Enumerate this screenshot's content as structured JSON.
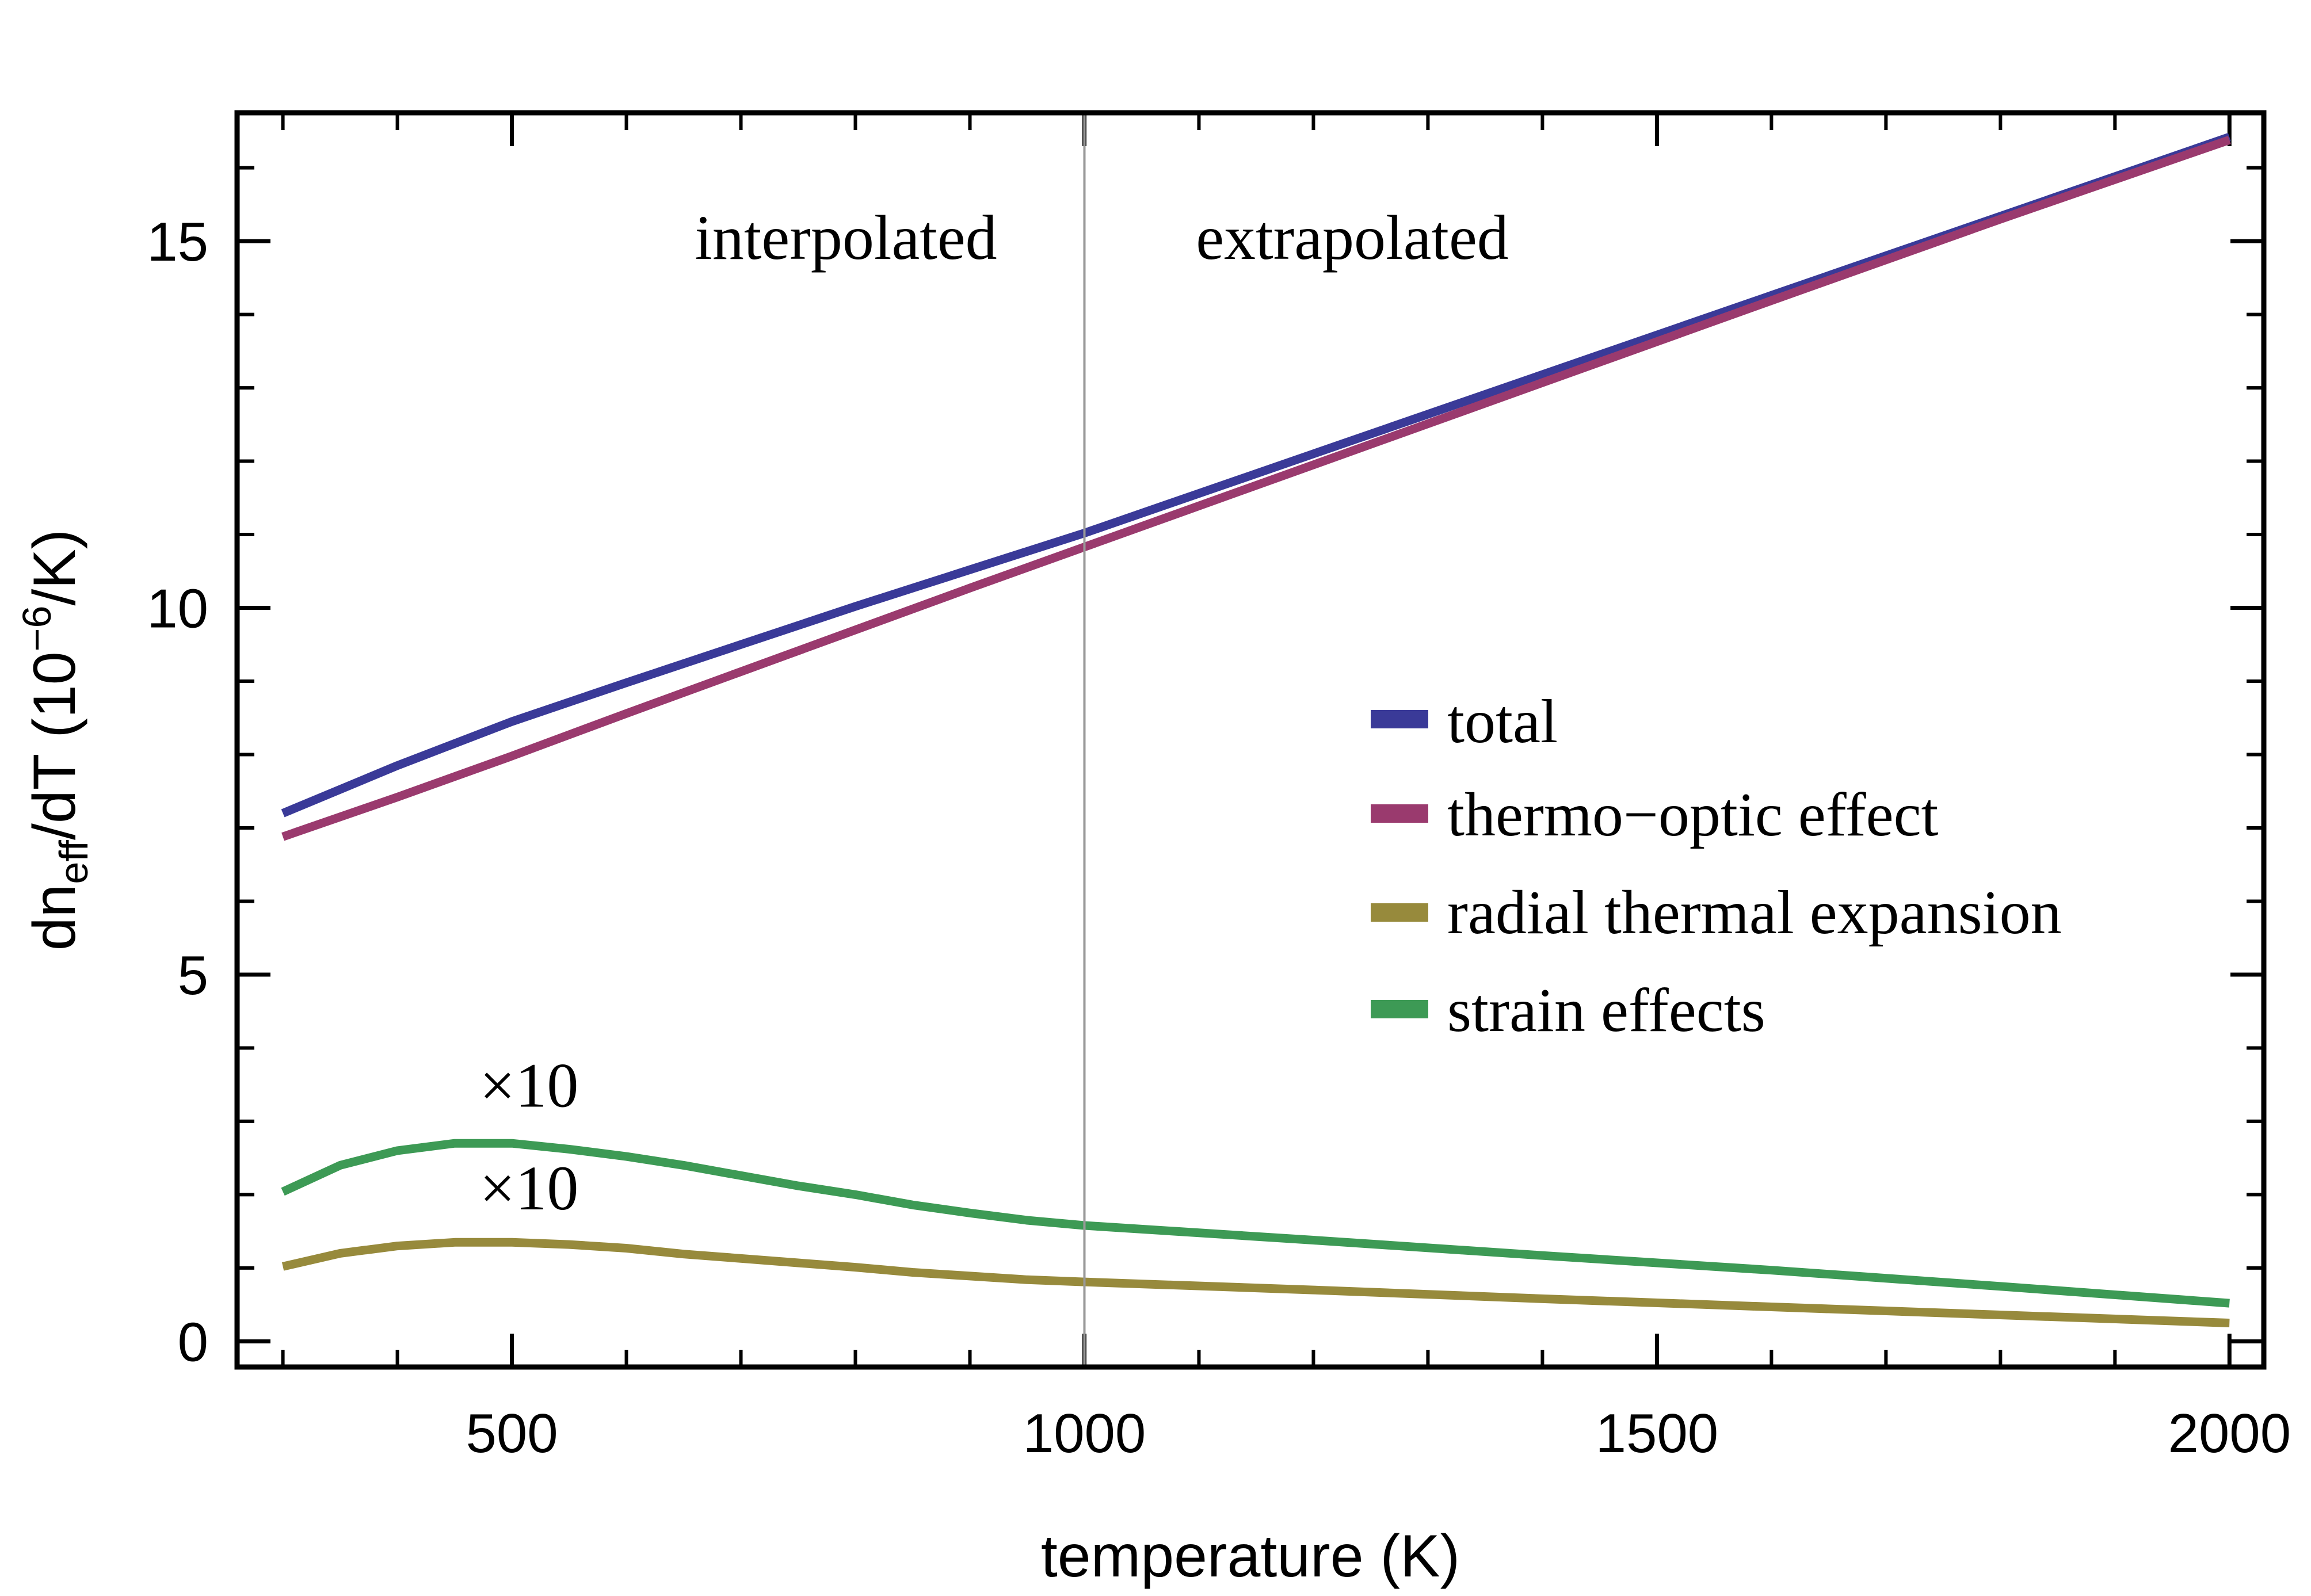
{
  "chart_data": {
    "type": "line",
    "xlabel": "temperature (K)",
    "ylabel": {
      "prefix": "dn",
      "subscript": "eff",
      "middle": "/dT (10",
      "superscript": "−6",
      "suffix": "/K)"
    },
    "xlim": [
      260,
      2030
    ],
    "ylim": [
      -0.35,
      16.75
    ],
    "x_ticks": [
      500,
      1000,
      1500,
      2000
    ],
    "x_tick_labels": [
      "500",
      "1000",
      "1500",
      "2000"
    ],
    "y_ticks": [
      0,
      5,
      10,
      15
    ],
    "y_tick_labels": [
      "0",
      "5",
      "10",
      "15"
    ],
    "x_minor_step": 100,
    "y_minor_step": 1,
    "divider": {
      "x": 1000,
      "left_label": "interpolated",
      "right_label": "extrapolated"
    },
    "grid": false,
    "legend_position": "center-right",
    "series": [
      {
        "name": "total",
        "color": "#3a3a98",
        "x": [
          300,
          400,
          500,
          600,
          700,
          800,
          900,
          1000,
          1200,
          1400,
          1600,
          1800,
          2000
        ],
        "y": [
          7.2,
          7.85,
          8.45,
          8.98,
          9.5,
          10.02,
          10.52,
          11.02,
          12.1,
          13.18,
          14.26,
          15.34,
          16.42
        ]
      },
      {
        "name": "thermo−optic effect",
        "color": "#9a3a6e",
        "x": [
          300,
          400,
          500,
          600,
          700,
          800,
          900,
          1000,
          1200,
          1400,
          1600,
          1800,
          2000
        ],
        "y": [
          6.88,
          7.42,
          7.98,
          8.56,
          9.13,
          9.7,
          10.27,
          10.83,
          11.95,
          13.07,
          14.19,
          15.3,
          16.38
        ]
      },
      {
        "name": "radial thermal expansion",
        "color": "#978a3c",
        "x": [
          300,
          350,
          400,
          450,
          500,
          550,
          600,
          650,
          700,
          750,
          800,
          850,
          900,
          950,
          1000,
          1200,
          1400,
          1600,
          1800,
          2000
        ],
        "y": [
          1.02,
          1.2,
          1.3,
          1.35,
          1.35,
          1.32,
          1.27,
          1.19,
          1.13,
          1.07,
          1.01,
          0.94,
          0.89,
          0.84,
          0.81,
          0.7,
          0.58,
          0.47,
          0.36,
          0.25
        ]
      },
      {
        "name": "strain effects",
        "color": "#3d9a55",
        "x": [
          300,
          350,
          400,
          450,
          500,
          550,
          600,
          650,
          700,
          750,
          800,
          850,
          900,
          950,
          1000,
          1200,
          1400,
          1600,
          1800,
          2000
        ],
        "y": [
          2.04,
          2.4,
          2.6,
          2.7,
          2.7,
          2.62,
          2.52,
          2.4,
          2.26,
          2.12,
          2.0,
          1.86,
          1.75,
          1.65,
          1.58,
          1.38,
          1.17,
          0.97,
          0.75,
          0.52
        ]
      }
    ],
    "annotations": [
      {
        "text": "×10",
        "x": 515,
        "y": 3.2
      },
      {
        "text": "×10",
        "x": 515,
        "y": 1.8
      }
    ]
  }
}
